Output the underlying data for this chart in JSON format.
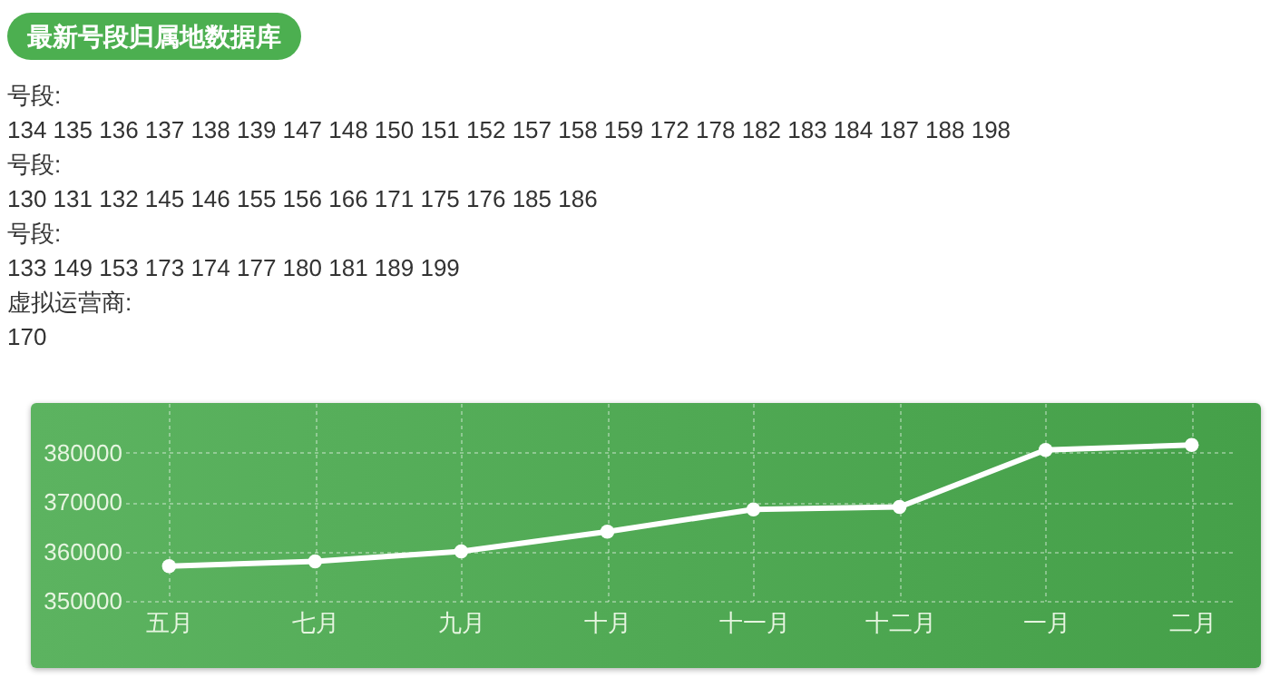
{
  "chart_data": {
    "type": "line",
    "title": "最新号段归属地数据库",
    "annotations": [
      "号段:",
      "134 135 136 137 138 139 147 148 150 151 152 157 158 159 172 178 182 183 184 187 188 198",
      "号段:",
      "130 131 132 145 146 155 156 166 171 175 176 185 186",
      "号段:",
      "133 149 153 173 174 177 180 181 189 199",
      "虚拟运营商:",
      "170"
    ],
    "categories": [
      "五月",
      "七月",
      "九月",
      "十月",
      "十一月",
      "十二月",
      "一月",
      "二月"
    ],
    "series": [
      {
        "color": "#ffffff",
        "values": [
          357000,
          358000,
          360000,
          364000,
          368500,
          369000,
          380500,
          381500
        ]
      }
    ],
    "ylim": [
      350000,
      390000
    ],
    "yticks": [
      350000,
      360000,
      370000,
      380000
    ],
    "grid": true,
    "marker": "circle",
    "line_style": "solid"
  }
}
